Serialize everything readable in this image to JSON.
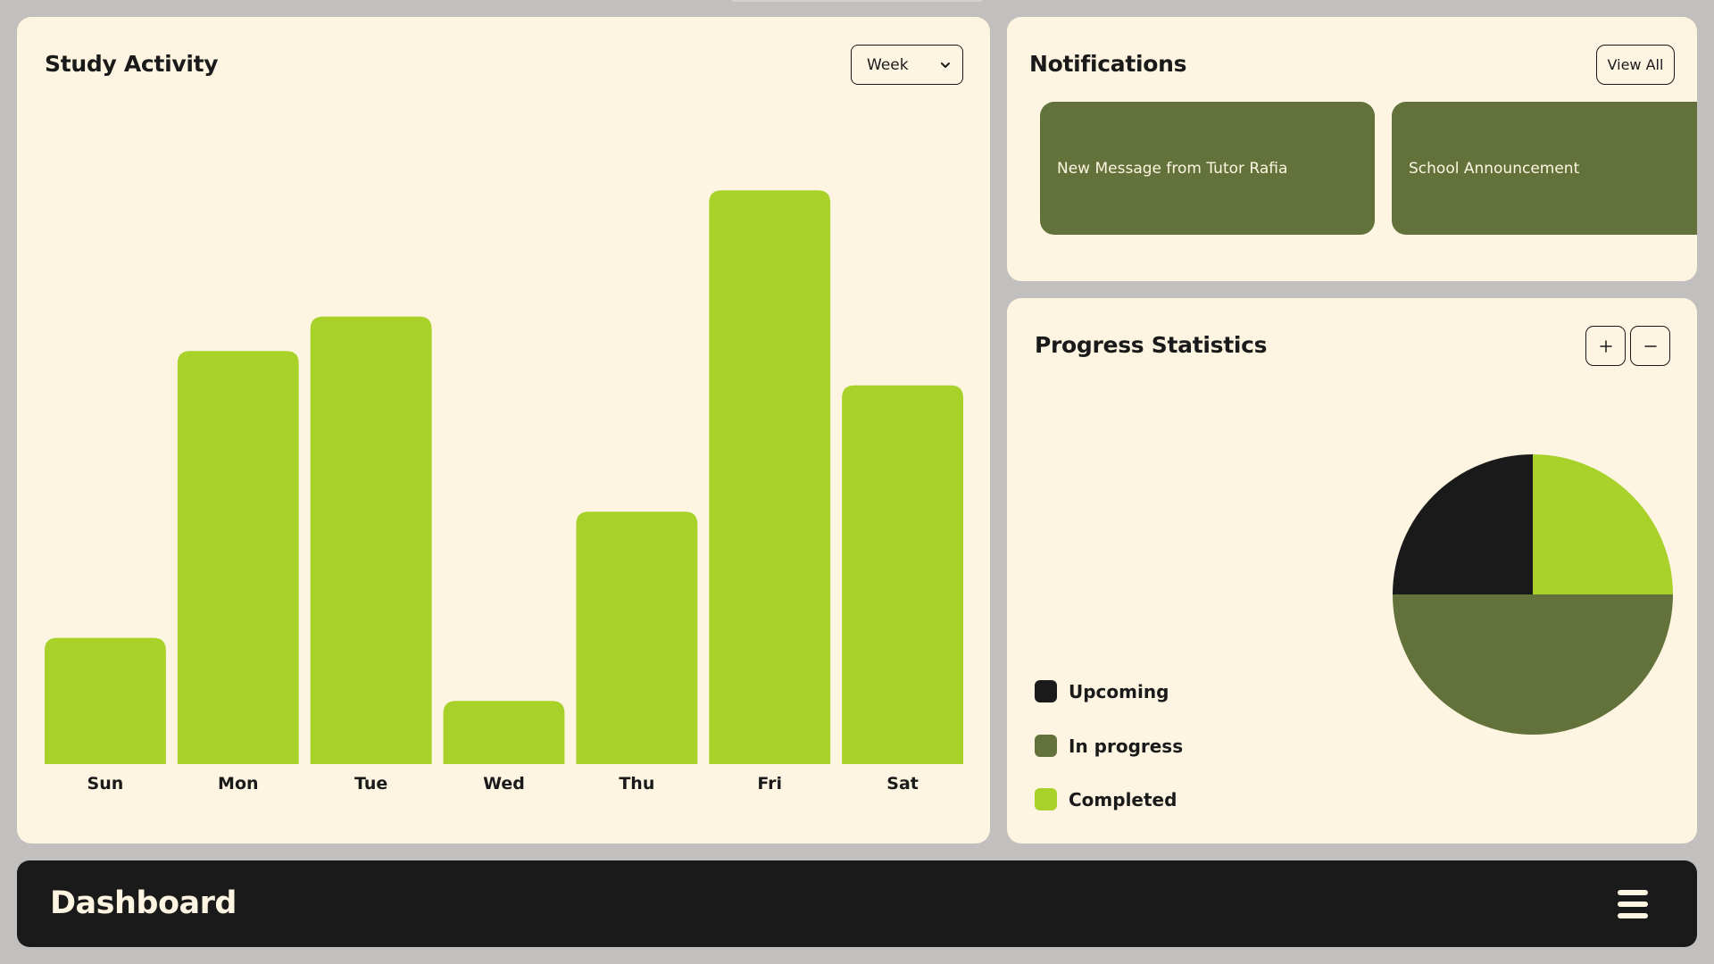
{
  "study_activity": {
    "title": "Study Activity",
    "range_select": {
      "value": "Week"
    }
  },
  "notifications": {
    "title": "Notifications",
    "view_all_label": "View All",
    "items": [
      {
        "text": "New Message from Tutor Rafia"
      },
      {
        "text": "School Announcement"
      }
    ]
  },
  "progress": {
    "title": "Progress Statistics",
    "zoom_in_icon": "plus-icon",
    "zoom_out_icon": "minus-icon",
    "legend": [
      {
        "label": "Upcoming",
        "color": "#1b1a1b"
      },
      {
        "label": "In progress",
        "color": "#62723a"
      },
      {
        "label": "Completed",
        "color": "#a8d12a"
      }
    ]
  },
  "footer": {
    "title": "Dashboard",
    "menu_icon": "hamburger-menu-icon"
  },
  "colors": {
    "accent": "#a8d12a",
    "olive": "#62723a",
    "dark": "#1b1a1b",
    "card": "#fdf5e1",
    "background": "#c2bfbf"
  },
  "chart_data": [
    {
      "type": "bar",
      "title": "Study Activity",
      "categories": [
        "Sun",
        "Mon",
        "Tue",
        "Wed",
        "Thu",
        "Fri",
        "Sat"
      ],
      "values": [
        22,
        72,
        78,
        11,
        44,
        100,
        66
      ],
      "ylim": [
        0,
        110
      ],
      "grid": false,
      "color": "#a8d12a"
    },
    {
      "type": "pie",
      "title": "Progress Statistics",
      "labels": [
        "Completed",
        "In progress",
        "Upcoming"
      ],
      "values": [
        25,
        50,
        25
      ],
      "colors": [
        "#a8d12a",
        "#62723a",
        "#1b1a1b"
      ],
      "legend": "left"
    }
  ]
}
